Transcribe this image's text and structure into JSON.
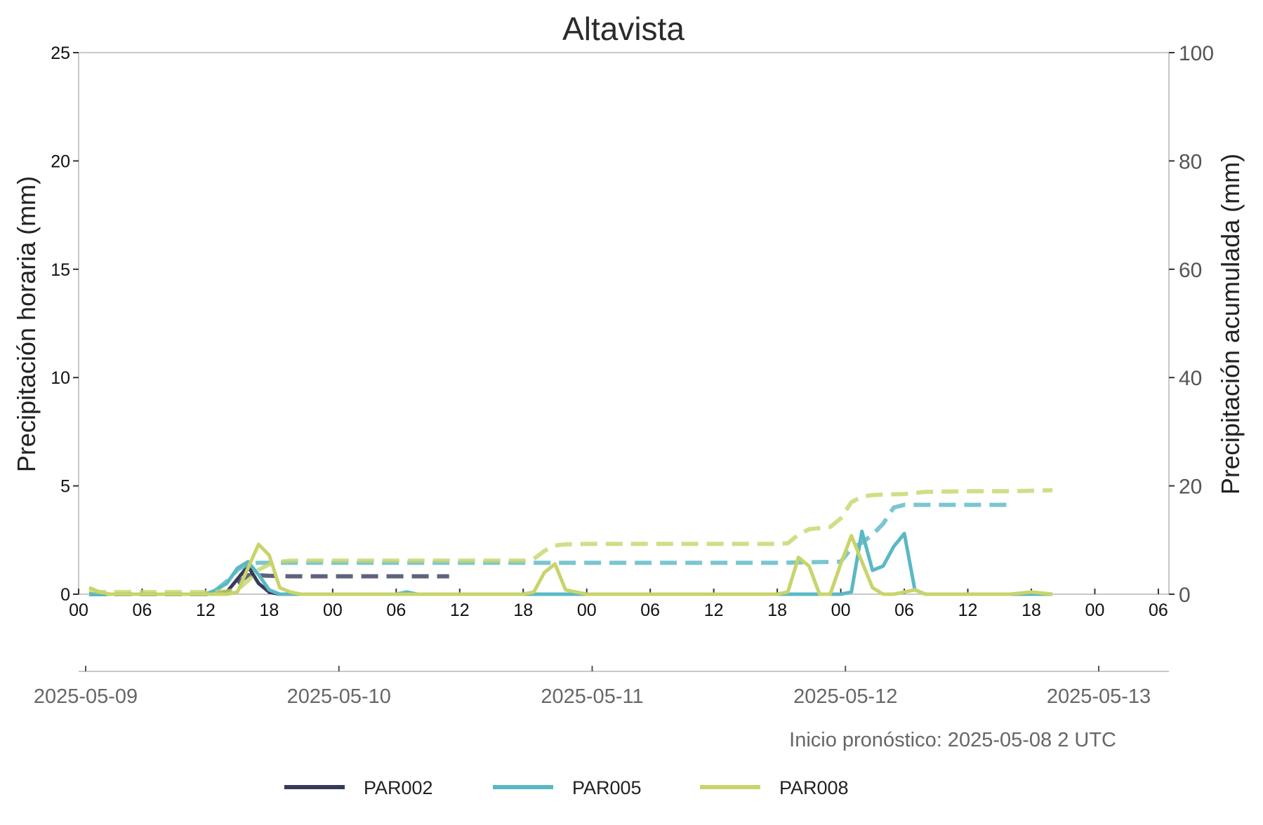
{
  "chart_data": {
    "type": "line",
    "title": "Altavista",
    "ylabel_left": "Precipitación horaria (mm)",
    "ylabel_right": "Precipitación acumulada (mm)",
    "ylim_left": [
      0,
      25
    ],
    "ylim_right": [
      0,
      100
    ],
    "yticks_left": [
      "0",
      "5",
      "10",
      "15",
      "20",
      "25"
    ],
    "yticks_right": [
      "0",
      "20",
      "40",
      "60",
      "80",
      "100"
    ],
    "x_unit": "hours from 2025-05-09 00 UTC",
    "xlim": [
      0,
      103
    ],
    "hour_ticks": [
      "00",
      "06",
      "12",
      "18",
      "00",
      "06",
      "12",
      "18",
      "00",
      "06",
      "12",
      "18",
      "00",
      "06",
      "12",
      "18",
      "00",
      "06"
    ],
    "date_ticks": [
      "2025-05-09",
      "2025-05-10",
      "2025-05-11",
      "2025-05-12",
      "2025-05-13"
    ],
    "grid": false,
    "legend_position": "bottom",
    "note": "Inicio pronóstico: 2025-05-08 2 UTC",
    "series": [
      {
        "name": "PAR002",
        "color": "#363b5a",
        "hourly": [
          [
            1,
            0
          ],
          [
            2,
            0
          ],
          [
            4,
            0
          ],
          [
            6,
            0
          ],
          [
            8,
            0
          ],
          [
            10,
            0
          ],
          [
            12,
            0
          ],
          [
            13,
            0
          ],
          [
            14,
            0.1
          ],
          [
            15,
            0.7
          ],
          [
            16,
            1.3
          ],
          [
            17,
            0.5
          ],
          [
            18,
            0.1
          ],
          [
            19,
            0
          ],
          [
            20,
            0
          ],
          [
            22,
            0
          ],
          [
            24,
            0
          ],
          [
            26,
            0
          ],
          [
            28,
            0
          ],
          [
            30,
            0
          ],
          [
            32,
            0
          ],
          [
            34,
            0
          ],
          [
            35,
            0
          ]
        ],
        "cumulative": [
          [
            1,
            0
          ],
          [
            6,
            0
          ],
          [
            12,
            0
          ],
          [
            14,
            0.4
          ],
          [
            15,
            2
          ],
          [
            16,
            3.5
          ],
          [
            17,
            3.5
          ],
          [
            18,
            3.4
          ],
          [
            20,
            3.3
          ],
          [
            24,
            3.3
          ],
          [
            30,
            3.3
          ],
          [
            35,
            3.3
          ]
        ]
      },
      {
        "name": "PAR005",
        "color": "#5ab8c4",
        "hourly": [
          [
            1,
            0
          ],
          [
            2,
            0
          ],
          [
            4,
            0
          ],
          [
            6,
            0
          ],
          [
            8,
            0
          ],
          [
            10,
            0
          ],
          [
            12,
            0
          ],
          [
            13,
            0.2
          ],
          [
            14,
            0.5
          ],
          [
            15,
            1.2
          ],
          [
            16,
            1.5
          ],
          [
            17,
            0.9
          ],
          [
            18,
            0.2
          ],
          [
            19,
            0
          ],
          [
            20,
            0
          ],
          [
            24,
            0
          ],
          [
            28,
            0
          ],
          [
            30,
            0
          ],
          [
            31,
            0.1
          ],
          [
            32,
            0
          ],
          [
            36,
            0
          ],
          [
            42,
            0
          ],
          [
            48,
            0
          ],
          [
            54,
            0
          ],
          [
            60,
            0
          ],
          [
            66,
            0
          ],
          [
            72,
            0
          ],
          [
            73,
            0.1
          ],
          [
            74,
            2.9
          ],
          [
            75,
            1.1
          ],
          [
            76,
            1.3
          ],
          [
            77,
            2.2
          ],
          [
            78,
            2.8
          ],
          [
            79,
            0.2
          ],
          [
            80,
            0
          ],
          [
            84,
            0
          ],
          [
            88,
            0
          ],
          [
            92,
            0
          ]
        ],
        "cumulative": [
          [
            1,
            0
          ],
          [
            12,
            0
          ],
          [
            13,
            0.8
          ],
          [
            14,
            2.4
          ],
          [
            15,
            4.5
          ],
          [
            16,
            5.6
          ],
          [
            17,
            5.8
          ],
          [
            18,
            5.8
          ],
          [
            24,
            5.8
          ],
          [
            36,
            5.8
          ],
          [
            42,
            5.8
          ],
          [
            48,
            5.8
          ],
          [
            54,
            5.8
          ],
          [
            60,
            5.8
          ],
          [
            66,
            5.8
          ],
          [
            72,
            6
          ],
          [
            73,
            8.5
          ],
          [
            74,
            9.5
          ],
          [
            75,
            11
          ],
          [
            76,
            13
          ],
          [
            77,
            16
          ],
          [
            78,
            16.5
          ],
          [
            80,
            16.5
          ],
          [
            84,
            16.5
          ],
          [
            88,
            16.5
          ]
        ]
      },
      {
        "name": "PAR008",
        "color": "#c8d46a",
        "hourly": [
          [
            1,
            0.3
          ],
          [
            2,
            0.1
          ],
          [
            3,
            0
          ],
          [
            6,
            0
          ],
          [
            8,
            0
          ],
          [
            10,
            0
          ],
          [
            12,
            0
          ],
          [
            14,
            0
          ],
          [
            15,
            0.1
          ],
          [
            16,
            1.2
          ],
          [
            17,
            2.3
          ],
          [
            18,
            1.8
          ],
          [
            19,
            0.3
          ],
          [
            20,
            0.1
          ],
          [
            21,
            0
          ],
          [
            24,
            0
          ],
          [
            30,
            0
          ],
          [
            36,
            0
          ],
          [
            42,
            0
          ],
          [
            43,
            0.1
          ],
          [
            44,
            1
          ],
          [
            45,
            1.4
          ],
          [
            46,
            0.2
          ],
          [
            47,
            0.1
          ],
          [
            48,
            0
          ],
          [
            54,
            0
          ],
          [
            60,
            0
          ],
          [
            66,
            0
          ],
          [
            67,
            0.1
          ],
          [
            68,
            1.7
          ],
          [
            69,
            1.3
          ],
          [
            70,
            0
          ],
          [
            71,
            0
          ],
          [
            72,
            1.4
          ],
          [
            73,
            2.7
          ],
          [
            74,
            1.5
          ],
          [
            75,
            0.3
          ],
          [
            76,
            0
          ],
          [
            77,
            0
          ],
          [
            78,
            0.1
          ],
          [
            79,
            0.2
          ],
          [
            80,
            0
          ],
          [
            84,
            0
          ],
          [
            88,
            0
          ],
          [
            90,
            0.1
          ],
          [
            92,
            0
          ]
        ],
        "cumulative": [
          [
            1,
            0.8
          ],
          [
            2,
            0.4
          ],
          [
            3,
            0.4
          ],
          [
            12,
            0.4
          ],
          [
            14,
            0.5
          ],
          [
            15,
            0.8
          ],
          [
            16,
            2.5
          ],
          [
            17,
            4.5
          ],
          [
            18,
            5.5
          ],
          [
            19,
            6
          ],
          [
            20,
            6.2
          ],
          [
            24,
            6.2
          ],
          [
            30,
            6.2
          ],
          [
            36,
            6.2
          ],
          [
            42,
            6.2
          ],
          [
            43,
            6.5
          ],
          [
            44,
            8
          ],
          [
            45,
            9
          ],
          [
            46,
            9.2
          ],
          [
            48,
            9.3
          ],
          [
            54,
            9.3
          ],
          [
            60,
            9.3
          ],
          [
            66,
            9.3
          ],
          [
            67,
            9.4
          ],
          [
            68,
            11
          ],
          [
            69,
            12
          ],
          [
            70,
            12.2
          ],
          [
            71,
            12.4
          ],
          [
            72,
            14
          ],
          [
            73,
            17
          ],
          [
            74,
            18
          ],
          [
            75,
            18.3
          ],
          [
            76,
            18.4
          ],
          [
            78,
            18.5
          ],
          [
            80,
            18.9
          ],
          [
            84,
            19
          ],
          [
            88,
            19
          ],
          [
            92,
            19.2
          ]
        ]
      }
    ]
  }
}
